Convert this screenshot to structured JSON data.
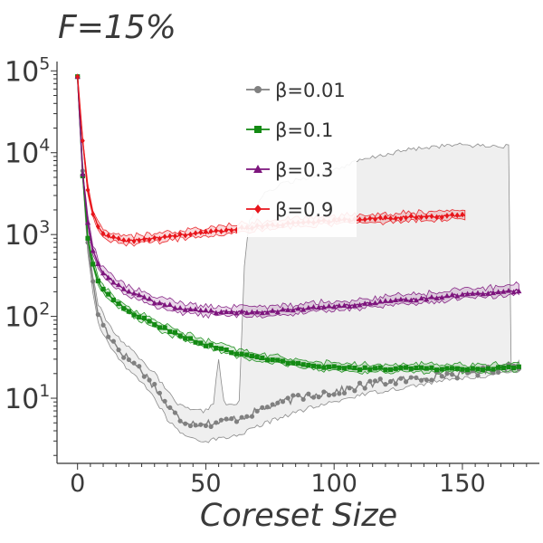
{
  "chart_data": {
    "type": "line",
    "title": "F=15%",
    "xlabel": "Coreset Size",
    "ylabel": "",
    "yscale": "log",
    "xlim": [
      -8,
      180
    ],
    "ylim": [
      1.6,
      130000
    ],
    "x_ticks": [
      0,
      50,
      100,
      150
    ],
    "x_tick_labels": [
      "0",
      "50",
      "100",
      "150"
    ],
    "y_ticks": [
      10,
      100,
      1000,
      10000,
      100000
    ],
    "y_tick_labels": [
      {
        "base": "10",
        "exp": "1"
      },
      {
        "base": "10",
        "exp": "2"
      },
      {
        "base": "10",
        "exp": "3"
      },
      {
        "base": "10",
        "exp": "4"
      },
      {
        "base": "10",
        "exp": "5"
      }
    ],
    "grid": false,
    "legend_position": "top-center",
    "series": [
      {
        "name": "β=0.01",
        "color": "#808080",
        "marker": "circle",
        "max_x": 172,
        "anchors": [
          [
            0,
            85000
          ],
          [
            2,
            6000
          ],
          [
            4,
            800
          ],
          [
            6,
            250
          ],
          [
            8,
            110
          ],
          [
            12,
            60
          ],
          [
            16,
            40
          ],
          [
            20,
            30
          ],
          [
            25,
            22
          ],
          [
            30,
            14
          ],
          [
            35,
            8
          ],
          [
            40,
            5.5
          ],
          [
            45,
            5
          ],
          [
            50,
            5
          ],
          [
            55,
            5
          ],
          [
            60,
            5.5
          ],
          [
            65,
            6
          ],
          [
            70,
            7
          ],
          [
            80,
            9
          ],
          [
            90,
            11
          ],
          [
            100,
            12
          ],
          [
            110,
            14
          ],
          [
            120,
            16
          ],
          [
            130,
            17
          ],
          [
            140,
            19
          ],
          [
            150,
            20
          ],
          [
            160,
            22
          ],
          [
            172,
            25
          ]
        ],
        "band_upper": [
          [
            0,
            85000
          ],
          [
            2,
            7500
          ],
          [
            4,
            1000
          ],
          [
            6,
            320
          ],
          [
            8,
            140
          ],
          [
            12,
            80
          ],
          [
            16,
            55
          ],
          [
            20,
            42
          ],
          [
            25,
            30
          ],
          [
            30,
            20
          ],
          [
            35,
            12
          ],
          [
            40,
            8
          ],
          [
            45,
            7
          ],
          [
            50,
            7
          ],
          [
            53,
            9
          ],
          [
            55,
            30
          ],
          [
            57,
            9
          ],
          [
            60,
            8
          ],
          [
            63,
            9
          ],
          [
            65,
            400
          ],
          [
            67,
            1500
          ],
          [
            72,
            3000
          ],
          [
            80,
            4200
          ],
          [
            90,
            5000
          ],
          [
            100,
            6200
          ],
          [
            110,
            8000
          ],
          [
            120,
            9500
          ],
          [
            130,
            11000
          ],
          [
            140,
            12000
          ],
          [
            150,
            12500
          ],
          [
            160,
            12000
          ],
          [
            168,
            12000
          ],
          [
            169,
            25
          ],
          [
            172,
            28
          ]
        ],
        "band_lower": [
          [
            0,
            85000
          ],
          [
            2,
            4800
          ],
          [
            4,
            600
          ],
          [
            6,
            190
          ],
          [
            8,
            85
          ],
          [
            12,
            45
          ],
          [
            16,
            30
          ],
          [
            20,
            22
          ],
          [
            25,
            16
          ],
          [
            30,
            10
          ],
          [
            35,
            5.5
          ],
          [
            40,
            3.8
          ],
          [
            45,
            3.2
          ],
          [
            50,
            3
          ],
          [
            55,
            3.2
          ],
          [
            60,
            3.4
          ],
          [
            65,
            3.8
          ],
          [
            70,
            4.5
          ],
          [
            80,
            6
          ],
          [
            90,
            7.5
          ],
          [
            100,
            9
          ],
          [
            110,
            11
          ],
          [
            120,
            12.5
          ],
          [
            130,
            14
          ],
          [
            140,
            16
          ],
          [
            150,
            17.5
          ],
          [
            160,
            19
          ],
          [
            172,
            21
          ]
        ]
      },
      {
        "name": "β=0.1",
        "color": "#138a13",
        "marker": "square",
        "max_x": 172,
        "anchors": [
          [
            0,
            85000
          ],
          [
            2,
            5200
          ],
          [
            4,
            900
          ],
          [
            6,
            420
          ],
          [
            8,
            280
          ],
          [
            10,
            210
          ],
          [
            15,
            150
          ],
          [
            20,
            115
          ],
          [
            30,
            80
          ],
          [
            40,
            58
          ],
          [
            50,
            45
          ],
          [
            60,
            37
          ],
          [
            70,
            31
          ],
          [
            80,
            28
          ],
          [
            90,
            25
          ],
          [
            100,
            24
          ],
          [
            110,
            23
          ],
          [
            120,
            23
          ],
          [
            130,
            23
          ],
          [
            140,
            23
          ],
          [
            150,
            23
          ],
          [
            160,
            23
          ],
          [
            172,
            24
          ]
        ],
        "band_rel": 0.13
      },
      {
        "name": "β=0.3",
        "color": "#7d157d",
        "marker": "triangle",
        "max_x": 172,
        "anchors": [
          [
            0,
            85000
          ],
          [
            2,
            5500
          ],
          [
            4,
            1400
          ],
          [
            6,
            650
          ],
          [
            8,
            430
          ],
          [
            10,
            340
          ],
          [
            15,
            250
          ],
          [
            20,
            200
          ],
          [
            30,
            150
          ],
          [
            40,
            125
          ],
          [
            50,
            115
          ],
          [
            60,
            112
          ],
          [
            70,
            113
          ],
          [
            80,
            118
          ],
          [
            90,
            125
          ],
          [
            100,
            132
          ],
          [
            110,
            140
          ],
          [
            120,
            150
          ],
          [
            130,
            160
          ],
          [
            140,
            172
          ],
          [
            150,
            185
          ],
          [
            160,
            195
          ],
          [
            170,
            205
          ],
          [
            172,
            208
          ]
        ],
        "band_rel": 0.16
      },
      {
        "name": "β=0.9",
        "color": "#e8151b",
        "marker": "diamond",
        "max_x": 151,
        "anchors": [
          [
            0,
            85000
          ],
          [
            2,
            14000
          ],
          [
            4,
            3500
          ],
          [
            6,
            1800
          ],
          [
            8,
            1250
          ],
          [
            10,
            1000
          ],
          [
            15,
            880
          ],
          [
            20,
            840
          ],
          [
            25,
            860
          ],
          [
            30,
            900
          ],
          [
            40,
            980
          ],
          [
            50,
            1050
          ],
          [
            60,
            1150
          ],
          [
            70,
            1250
          ],
          [
            80,
            1330
          ],
          [
            90,
            1400
          ],
          [
            100,
            1470
          ],
          [
            110,
            1530
          ],
          [
            120,
            1580
          ],
          [
            130,
            1630
          ],
          [
            140,
            1670
          ],
          [
            151,
            1720
          ]
        ],
        "band_rel": 0.14
      }
    ]
  }
}
